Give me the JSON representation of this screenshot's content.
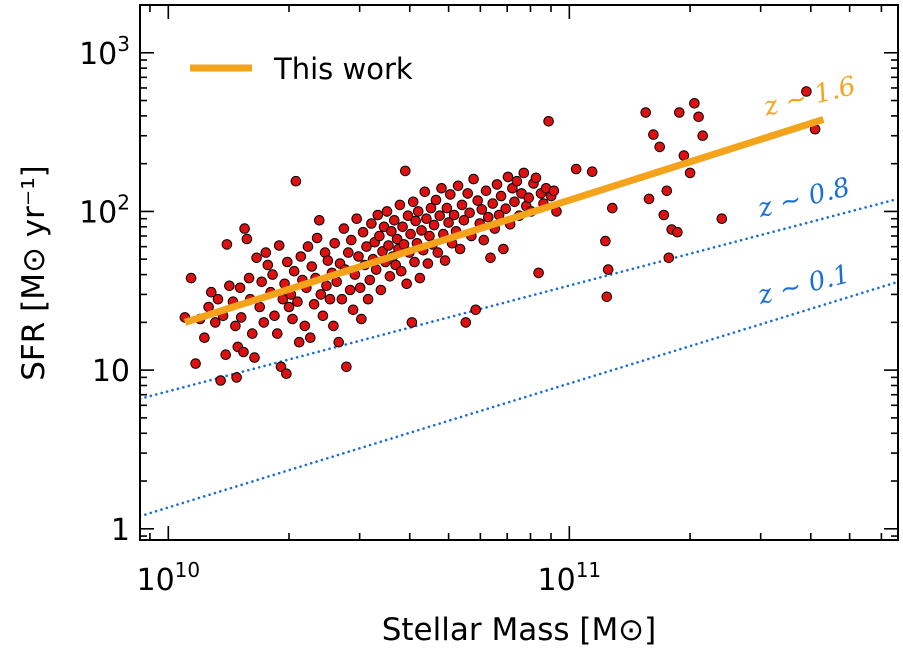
{
  "chart_data": {
    "type": "scatter",
    "title": "",
    "xlabel": "Stellar Mass [M⊙]",
    "ylabel": "SFR [M⊙ yr⁻¹]",
    "xscale": "log",
    "yscale": "log",
    "xlim": [
      8500000000.0,
      660000000000.0
    ],
    "ylim": [
      0.85,
      2000
    ],
    "x_ticks": [
      {
        "value": 10000000000.0,
        "label": "10",
        "exp": "10"
      },
      {
        "value": 100000000000.0,
        "label": "10",
        "exp": "11"
      }
    ],
    "y_ticks": [
      {
        "value": 1,
        "label": "1",
        "exp": ""
      },
      {
        "value": 10,
        "label": "10",
        "exp": ""
      },
      {
        "value": 100,
        "label": "10",
        "exp": "2"
      },
      {
        "value": 1000,
        "label": "10",
        "exp": "3"
      }
    ],
    "legend": {
      "position": "top-left",
      "entries": [
        {
          "label": "This work",
          "color": "#f5a31a"
        }
      ]
    },
    "grid": false,
    "lines": [
      {
        "name": "This work",
        "style": "solid",
        "color": "#f5a31a",
        "x": [
          11000000000.0,
          430000000000.0
        ],
        "y": [
          20,
          380
        ]
      },
      {
        "name": "z ~ 0.8",
        "style": "dotted",
        "color": "#1a6fd6",
        "x": [
          8500000000.0,
          660000000000.0
        ],
        "y": [
          6.6,
          120
        ]
      },
      {
        "name": "z ~ 0.1",
        "style": "dotted",
        "color": "#1a6fd6",
        "x": [
          8500000000.0,
          660000000000.0
        ],
        "y": [
          1.2,
          36
        ]
      }
    ],
    "annotations": [
      {
        "text": "z ~ 1.6",
        "color": "#f5a31a",
        "x": 310000000000.0,
        "y": 400
      },
      {
        "text": "z ~ 0.8",
        "color": "#1a6fd6",
        "x": 300000000000.0,
        "y": 92
      },
      {
        "text": "z ~ 0.1",
        "color": "#1a6fd6",
        "x": 300000000000.0,
        "y": 26
      }
    ],
    "series": [
      {
        "marker": "circle",
        "fill": "#dd1111",
        "points": [
          [
            11000000000.0,
            21.5
          ],
          [
            11400000000.0,
            38
          ],
          [
            11700000000.0,
            11
          ],
          [
            12000000000.0,
            21
          ],
          [
            12300000000.0,
            16
          ],
          [
            12600000000.0,
            25
          ],
          [
            12800000000.0,
            31
          ],
          [
            13100000000.0,
            20
          ],
          [
            13300000000.0,
            28
          ],
          [
            13500000000.0,
            8.6
          ],
          [
            13700000000.0,
            22
          ],
          [
            13900000000.0,
            12.5
          ],
          [
            14000000000.0,
            62
          ],
          [
            14200000000.0,
            34
          ],
          [
            14500000000.0,
            27
          ],
          [
            14700000000.0,
            19
          ],
          [
            14800000000.0,
            9
          ],
          [
            14900000000.0,
            14
          ],
          [
            15100000000.0,
            33
          ],
          [
            15200000000.0,
            21.5
          ],
          [
            15400000000.0,
            13
          ],
          [
            15500000000.0,
            78
          ],
          [
            15700000000.0,
            67
          ],
          [
            15900000000.0,
            38
          ],
          [
            16000000000.0,
            28
          ],
          [
            16200000000.0,
            17
          ],
          [
            16400000000.0,
            12
          ],
          [
            16600000000.0,
            51
          ],
          [
            16900000000.0,
            25
          ],
          [
            17100000000.0,
            36
          ],
          [
            17300000000.0,
            20
          ],
          [
            17500000000.0,
            55
          ],
          [
            17700000000.0,
            46
          ],
          [
            18000000000.0,
            31
          ],
          [
            18200000000.0,
            40
          ],
          [
            18400000000.0,
            22
          ],
          [
            18700000000.0,
            17
          ],
          [
            18900000000.0,
            61
          ],
          [
            19100000000.0,
            10.5
          ],
          [
            19300000000.0,
            28
          ],
          [
            19500000000.0,
            35
          ],
          [
            19700000000.0,
            9.5
          ],
          [
            19800000000.0,
            48
          ],
          [
            20000000000.0,
            25
          ],
          [
            20200000000.0,
            30
          ],
          [
            20400000000.0,
            21
          ],
          [
            20600000000.0,
            42
          ],
          [
            20800000000.0,
            155
          ],
          [
            21000000000.0,
            27
          ],
          [
            21200000000.0,
            15
          ],
          [
            21400000000.0,
            52
          ],
          [
            21600000000.0,
            37
          ],
          [
            21900000000.0,
            19
          ],
          [
            22100000000.0,
            33
          ],
          [
            22300000000.0,
            60
          ],
          [
            22600000000.0,
            16
          ],
          [
            22800000000.0,
            45
          ],
          [
            23100000000.0,
            26
          ],
          [
            23300000000.0,
            38
          ],
          [
            23500000000.0,
            68
          ],
          [
            23800000000.0,
            88
          ],
          [
            24000000000.0,
            30
          ],
          [
            24300000000.0,
            22
          ],
          [
            24600000000.0,
            55
          ],
          [
            24800000000.0,
            34
          ],
          [
            25000000000.0,
            49
          ],
          [
            25300000000.0,
            28
          ],
          [
            25600000000.0,
            41
          ],
          [
            25800000000.0,
            19
          ],
          [
            26000000000.0,
            63
          ],
          [
            26300000000.0,
            36
          ],
          [
            26600000000.0,
            15
          ],
          [
            26800000000.0,
            47
          ],
          [
            27100000000.0,
            28
          ],
          [
            27400000000.0,
            78
          ],
          [
            27600000000.0,
            43
          ],
          [
            27800000000.0,
            10.5
          ],
          [
            28100000000.0,
            55
          ],
          [
            28400000000.0,
            32
          ],
          [
            28600000000.0,
            66
          ],
          [
            28900000000.0,
            24
          ],
          [
            29200000000.0,
            40
          ],
          [
            29500000000.0,
            90
          ],
          [
            29800000000.0,
            52
          ],
          [
            30100000000.0,
            33
          ],
          [
            30300000000.0,
            21
          ],
          [
            30600000000.0,
            74
          ],
          [
            30900000000.0,
            46
          ],
          [
            31200000000.0,
            60
          ],
          [
            31500000000.0,
            28
          ],
          [
            31800000000.0,
            37
          ],
          [
            32100000000.0,
            84
          ],
          [
            32400000000.0,
            50
          ],
          [
            32700000000.0,
            64
          ],
          [
            33000000000.0,
            43
          ],
          [
            33300000000.0,
            95
          ],
          [
            33600000000.0,
            70
          ],
          [
            33900000000.0,
            32
          ],
          [
            34200000000.0,
            56
          ],
          [
            34500000000.0,
            80
          ],
          [
            34800000000.0,
            48
          ],
          [
            35100000000.0,
            100
          ],
          [
            35400000000.0,
            61
          ],
          [
            35700000000.0,
            39
          ],
          [
            36000000000.0,
            75
          ],
          [
            36300000000.0,
            52
          ],
          [
            36600000000.0,
            88
          ],
          [
            36900000000.0,
            46
          ],
          [
            37200000000.0,
            67
          ],
          [
            37500000000.0,
            58
          ],
          [
            37800000000.0,
            110
          ],
          [
            38100000000.0,
            42
          ],
          [
            38400000000.0,
            80
          ],
          [
            38700000000.0,
            62
          ],
          [
            39000000000.0,
            180
          ],
          [
            39300000000.0,
            35
          ],
          [
            39600000000.0,
            94
          ],
          [
            39900000000.0,
            55
          ],
          [
            40200000000.0,
            72
          ],
          [
            40500000000.0,
            20
          ],
          [
            40800000000.0,
            115
          ],
          [
            41100000000.0,
            48
          ],
          [
            41400000000.0,
            87
          ],
          [
            41700000000.0,
            63
          ],
          [
            42000000000.0,
            100
          ],
          [
            42400000000.0,
            38
          ],
          [
            42800000000.0,
            76
          ],
          [
            43200000000.0,
            57
          ],
          [
            43600000000.0,
            133
          ],
          [
            44000000000.0,
            90
          ],
          [
            44400000000.0,
            47
          ],
          [
            44800000000.0,
            70
          ],
          [
            45200000000.0,
            105
          ],
          [
            45600000000.0,
            62
          ],
          [
            46000000000.0,
            82
          ],
          [
            46500000000.0,
            118
          ],
          [
            47000000000.0,
            55
          ],
          [
            47500000000.0,
            94
          ],
          [
            48000000000.0,
            140
          ],
          [
            48500000000.0,
            72
          ],
          [
            49000000000.0,
            49
          ],
          [
            49500000000.0,
            105
          ],
          [
            50000000000.0,
            85
          ],
          [
            50500000000.0,
            128
          ],
          [
            51000000000.0,
            63
          ],
          [
            51600000000.0,
            95
          ],
          [
            52200000000.0,
            75
          ],
          [
            52800000000.0,
            145
          ],
          [
            53400000000.0,
            58
          ],
          [
            54000000000.0,
            110
          ],
          [
            54600000000.0,
            88
          ],
          [
            55200000000.0,
            20
          ],
          [
            55800000000.0,
            130
          ],
          [
            56400000000.0,
            98
          ],
          [
            57000000000.0,
            70
          ],
          [
            57700000000.0,
            160
          ],
          [
            58400000000.0,
            24
          ],
          [
            59100000000.0,
            117
          ],
          [
            59800000000.0,
            84
          ],
          [
            60500000000.0,
            103
          ],
          [
            61200000000.0,
            66
          ],
          [
            62000000000.0,
            135
          ],
          [
            62800000000.0,
            92
          ],
          [
            63600000000.0,
            51
          ],
          [
            64400000000.0,
            112
          ],
          [
            65200000000.0,
            78
          ],
          [
            66000000000.0,
            148
          ],
          [
            66800000000.0,
            95
          ],
          [
            67600000000.0,
            125
          ],
          [
            68500000000.0,
            58
          ],
          [
            69400000000.0,
            104
          ],
          [
            70300000000.0,
            165
          ],
          [
            71200000000.0,
            83
          ],
          [
            72100000000.0,
            140
          ],
          [
            73000000000.0,
            115
          ],
          [
            74000000000.0,
            155
          ],
          [
            75000000000.0,
            94
          ],
          [
            76000000000.0,
            130
          ],
          [
            77000000000.0,
            175
          ],
          [
            78100000000.0,
            108
          ],
          [
            79200000000.0,
            122
          ],
          [
            80300000000.0,
            100
          ],
          [
            81400000000.0,
            150
          ],
          [
            82600000000.0,
            163
          ],
          [
            83800000000.0,
            41
          ],
          [
            85000000000.0,
            130
          ],
          [
            86200000000.0,
            112
          ],
          [
            87500000000.0,
            140
          ],
          [
            88800000000.0,
            370
          ],
          [
            90100000000.0,
            125
          ],
          [
            91500000000.0,
            135
          ],
          [
            92900000000.0,
            100
          ],
          [
            104000000000.0,
            185
          ],
          [
            114000000000.0,
            178
          ],
          [
            123000000000.0,
            65
          ],
          [
            124000000000.0,
            29
          ],
          [
            125000000000.0,
            43
          ],
          [
            128000000000.0,
            105
          ],
          [
            155000000000.0,
            420
          ],
          [
            158000000000.0,
            120
          ],
          [
            162000000000.0,
            305
          ],
          [
            168000000000.0,
            255
          ],
          [
            172000000000.0,
            95
          ],
          [
            175000000000.0,
            135
          ],
          [
            177000000000.0,
            51
          ],
          [
            180000000000.0,
            77
          ],
          [
            186000000000.0,
            74
          ],
          [
            188000000000.0,
            420
          ],
          [
            193000000000.0,
            225
          ],
          [
            200000000000.0,
            175
          ],
          [
            205000000000.0,
            480
          ],
          [
            210000000000.0,
            395
          ],
          [
            215000000000.0,
            300
          ],
          [
            240000000000.0,
            90
          ],
          [
            390000000000.0,
            570
          ],
          [
            410000000000.0,
            330
          ]
        ]
      }
    ]
  }
}
